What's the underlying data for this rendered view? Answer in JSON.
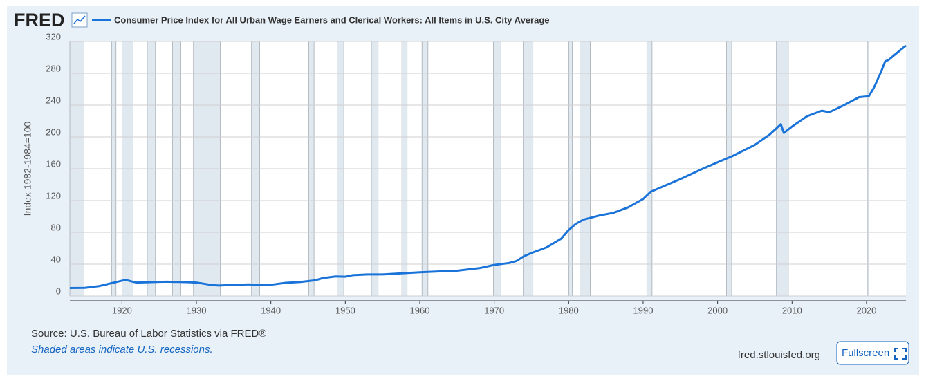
{
  "logo": "FRED",
  "source": "Source: U.S. Bureau of Labor Statistics via FRED®",
  "note": "Shaded areas indicate U.S. recessions.",
  "site": "fred.stlouisfed.org",
  "button": "Fullscreen",
  "chart_data": {
    "type": "line",
    "ylabel": "Index 1982-1984=100",
    "xlim": [
      1913,
      2025.3
    ],
    "xticks": [
      1920,
      1930,
      1940,
      1950,
      1960,
      1970,
      1980,
      1990,
      2000,
      2010,
      2020
    ],
    "ylim": [
      0,
      320
    ],
    "yticks": [
      0,
      40,
      80,
      120,
      160,
      200,
      240,
      280,
      320
    ],
    "grid": true,
    "recessions": [
      [
        1913.0,
        1914.9
      ],
      [
        1918.6,
        1919.2
      ],
      [
        1920.0,
        1921.5
      ],
      [
        1923.4,
        1924.5
      ],
      [
        1926.8,
        1927.9
      ],
      [
        1929.6,
        1933.2
      ],
      [
        1937.4,
        1938.5
      ],
      [
        1945.1,
        1945.8
      ],
      [
        1948.9,
        1949.8
      ],
      [
        1953.5,
        1954.4
      ],
      [
        1957.6,
        1958.3
      ],
      [
        1960.3,
        1961.1
      ],
      [
        1969.9,
        1970.9
      ],
      [
        1973.9,
        1975.2
      ],
      [
        1980.0,
        1980.5
      ],
      [
        1981.5,
        1982.9
      ],
      [
        1990.5,
        1991.2
      ],
      [
        2001.2,
        2001.9
      ],
      [
        2007.9,
        2009.5
      ],
      [
        2020.1,
        2020.3
      ]
    ],
    "series": [
      {
        "name": "Consumer Price Index for All Urban Wage Earners and Clerical Workers: All Items in U.S. City Average",
        "color": "#1a73d9",
        "x": [
          1913,
          1915,
          1917,
          1918,
          1919,
          1920.5,
          1921.5,
          1922,
          1925,
          1926,
          1929,
          1930,
          1931,
          1932,
          1933,
          1935,
          1937,
          1938,
          1940,
          1942,
          1944,
          1946,
          1947,
          1948.7,
          1950,
          1951,
          1953,
          1955,
          1957,
          1960,
          1965,
          1968,
          1970,
          1972,
          1973,
          1974,
          1975,
          1977,
          1979,
          1980,
          1981,
          1982,
          1984,
          1986,
          1988,
          1990,
          1991,
          1995,
          1998,
          2000,
          2002,
          2005,
          2007,
          2008.5,
          2008.9,
          2010,
          2012,
          2014,
          2015,
          2017,
          2019,
          2020.3,
          2021,
          2022,
          2022.5,
          2023,
          2024,
          2025.3
        ],
        "values": [
          10.0,
          10.2,
          12.5,
          14.8,
          17.0,
          20.3,
          17.7,
          16.9,
          17.7,
          17.9,
          17.3,
          16.9,
          15.4,
          13.8,
          13.1,
          13.9,
          14.5,
          14.2,
          14.1,
          16.5,
          17.6,
          19.8,
          22.5,
          24.5,
          24.3,
          26.2,
          27.0,
          27.0,
          28.2,
          29.8,
          31.7,
          35.0,
          39.0,
          41.5,
          44.0,
          50.0,
          54.0,
          61.0,
          72.0,
          83.0,
          91.0,
          96.0,
          101.0,
          104.5,
          111.5,
          122,
          131,
          147,
          160,
          168,
          176,
          190,
          203,
          216,
          205,
          213,
          226,
          233,
          231,
          240,
          250,
          251,
          262,
          283,
          295,
          297,
          305,
          315
        ]
      }
    ]
  }
}
